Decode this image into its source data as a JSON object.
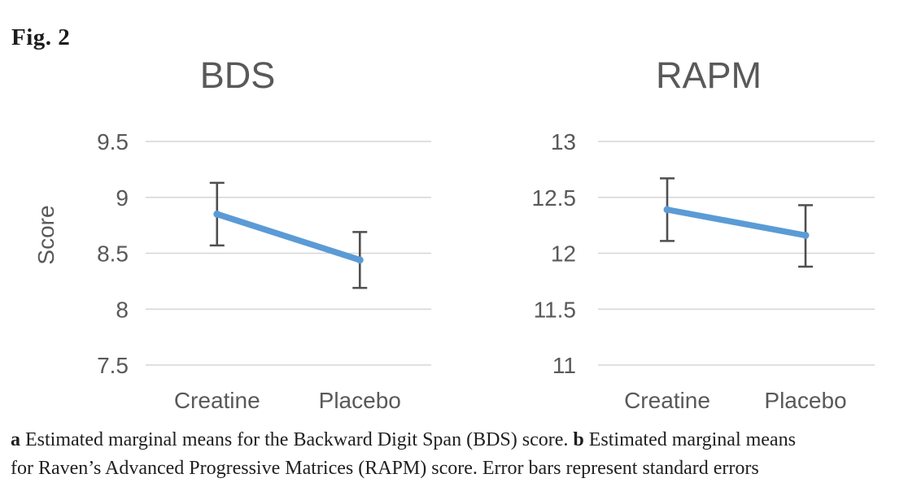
{
  "figure_label": "Fig. 2",
  "caption": {
    "a_label": "a",
    "a_text": "Estimated marginal means for the Backward Digit Span (BDS) score.",
    "b_label": "b",
    "b_text": "Estimated marginal means",
    "line2": "for Raven’s Advanced Progressive Matrices (RAPM) score. Error bars represent standard errors"
  },
  "colors": {
    "line": "#5B9BD5",
    "error_bar": "#4f4f4f",
    "gridline": "#d6d6d6",
    "axis_text": "#595959"
  },
  "chart_data": [
    {
      "type": "line",
      "title": "BDS",
      "ylabel": "Score",
      "categories": [
        "Creatine",
        "Placebo"
      ],
      "series": [
        {
          "name": "Estimated marginal mean",
          "values": [
            8.85,
            8.44
          ],
          "error_upper": [
            9.13,
            8.69
          ],
          "error_lower": [
            8.57,
            8.19
          ]
        }
      ],
      "yticks": [
        7.5,
        8,
        8.5,
        9,
        9.5
      ],
      "ylim": [
        7.5,
        9.5
      ],
      "grid": true,
      "legend": "none"
    },
    {
      "type": "line",
      "title": "RAPM",
      "ylabel": "",
      "categories": [
        "Creatine",
        "Placebo"
      ],
      "series": [
        {
          "name": "Estimated marginal mean",
          "values": [
            12.39,
            12.16
          ],
          "error_upper": [
            12.67,
            12.43
          ],
          "error_lower": [
            12.11,
            11.88
          ]
        }
      ],
      "yticks": [
        11,
        11.5,
        12,
        12.5,
        13
      ],
      "ylim": [
        11,
        13
      ],
      "grid": true,
      "legend": "none"
    }
  ]
}
